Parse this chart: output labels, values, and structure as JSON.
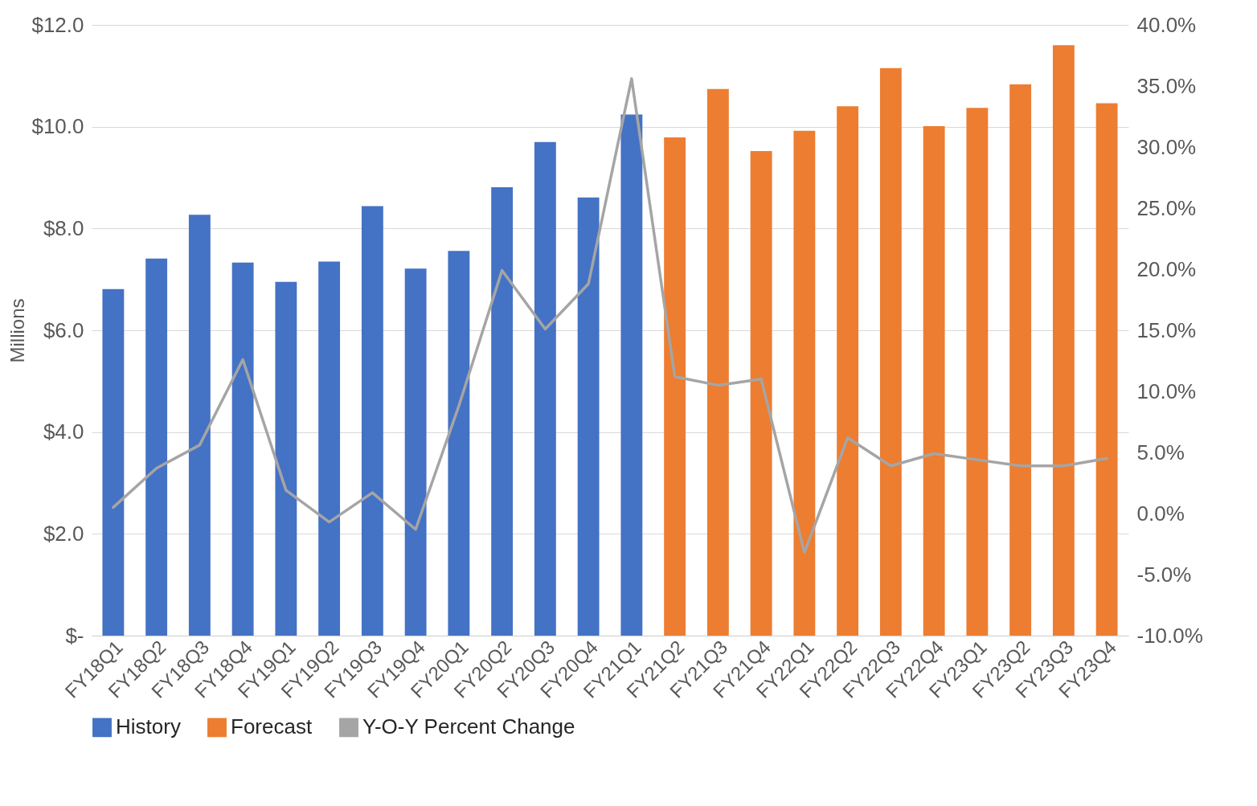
{
  "chart_data": {
    "type": "bar",
    "ylabel": "Millions",
    "categories": [
      "FY18Q1",
      "FY18Q2",
      "FY18Q3",
      "FY18Q4",
      "FY19Q1",
      "FY19Q2",
      "FY19Q3",
      "FY19Q4",
      "FY20Q1",
      "FY20Q2",
      "FY20Q3",
      "FY20Q4",
      "FY21Q1",
      "FY21Q2",
      "FY21Q3",
      "FY21Q4",
      "FY22Q1",
      "FY22Q2",
      "FY22Q3",
      "FY22Q4",
      "FY23Q1",
      "FY23Q2",
      "FY23Q3",
      "FY23Q4"
    ],
    "series": [
      {
        "name": "History",
        "color": "#4472c4",
        "values": [
          6.81,
          7.41,
          8.27,
          7.33,
          6.95,
          7.35,
          8.44,
          7.21,
          7.56,
          8.81,
          9.7,
          8.61,
          10.24,
          null,
          null,
          null,
          null,
          null,
          null,
          null,
          null,
          null,
          null,
          null
        ]
      },
      {
        "name": "Forecast",
        "color": "#ed7d31",
        "values": [
          null,
          null,
          null,
          null,
          null,
          null,
          null,
          null,
          null,
          null,
          null,
          null,
          null,
          9.79,
          10.74,
          9.52,
          9.92,
          10.4,
          11.15,
          10.01,
          10.37,
          10.83,
          11.6,
          10.46
        ]
      },
      {
        "name": "Y-O-Y Percent Change",
        "color": "#a5a5a5",
        "type": "line",
        "axis": "y2",
        "values": [
          0.5,
          3.7,
          5.6,
          12.6,
          1.9,
          -0.7,
          1.7,
          -1.3,
          8.8,
          19.9,
          15.1,
          18.8,
          35.6,
          11.2,
          10.5,
          11.0,
          -3.2,
          6.2,
          3.9,
          4.9,
          4.4,
          3.9,
          3.9,
          4.5
        ]
      }
    ],
    "ylim": [
      0,
      12
    ],
    "yticks": [
      {
        "value": 0,
        "label": "$-"
      },
      {
        "value": 2,
        "label": "$2.0"
      },
      {
        "value": 4,
        "label": "$4.0"
      },
      {
        "value": 6,
        "label": "$6.0"
      },
      {
        "value": 8,
        "label": "$8.0"
      },
      {
        "value": 10,
        "label": "$10.0"
      },
      {
        "value": 12,
        "label": "$12.0"
      }
    ],
    "y2lim": [
      -10,
      40
    ],
    "y2ticks": [
      {
        "value": -10,
        "label": "-10.0%"
      },
      {
        "value": -5,
        "label": "-5.0%"
      },
      {
        "value": 0,
        "label": "0.0%"
      },
      {
        "value": 5,
        "label": "5.0%"
      },
      {
        "value": 10,
        "label": "10.0%"
      },
      {
        "value": 15,
        "label": "15.0%"
      },
      {
        "value": 20,
        "label": "20.0%"
      },
      {
        "value": 25,
        "label": "25.0%"
      },
      {
        "value": 30,
        "label": "30.0%"
      },
      {
        "value": 35,
        "label": "35.0%"
      },
      {
        "value": 40,
        "label": "40.0%"
      }
    ],
    "grid": "y",
    "legend": "bottom",
    "line_style": "solid",
    "marker": "none"
  }
}
